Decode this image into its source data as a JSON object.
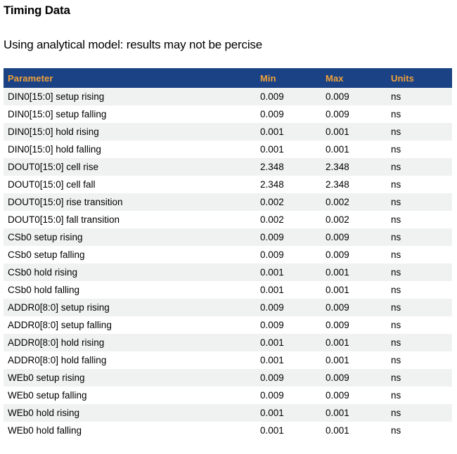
{
  "page": {
    "title": "Timing Data",
    "subtitle": "Using analytical model: results may not be percise"
  },
  "table": {
    "columns": [
      "Parameter",
      "Min",
      "Max",
      "Units"
    ],
    "rows": [
      {
        "parameter": "DIN0[15:0] setup rising",
        "min": "0.009",
        "max": "0.009",
        "units": "ns"
      },
      {
        "parameter": "DIN0[15:0] setup falling",
        "min": "0.009",
        "max": "0.009",
        "units": "ns"
      },
      {
        "parameter": "DIN0[15:0] hold rising",
        "min": "0.001",
        "max": "0.001",
        "units": "ns"
      },
      {
        "parameter": "DIN0[15:0] hold falling",
        "min": "0.001",
        "max": "0.001",
        "units": "ns"
      },
      {
        "parameter": "DOUT0[15:0] cell rise",
        "min": "2.348",
        "max": "2.348",
        "units": "ns"
      },
      {
        "parameter": "DOUT0[15:0] cell fall",
        "min": "2.348",
        "max": "2.348",
        "units": "ns"
      },
      {
        "parameter": "DOUT0[15:0] rise transition",
        "min": "0.002",
        "max": "0.002",
        "units": "ns"
      },
      {
        "parameter": "DOUT0[15:0] fall transition",
        "min": "0.002",
        "max": "0.002",
        "units": "ns"
      },
      {
        "parameter": "CSb0 setup rising",
        "min": "0.009",
        "max": "0.009",
        "units": "ns"
      },
      {
        "parameter": "CSb0 setup falling",
        "min": "0.009",
        "max": "0.009",
        "units": "ns"
      },
      {
        "parameter": "CSb0 hold rising",
        "min": "0.001",
        "max": "0.001",
        "units": "ns"
      },
      {
        "parameter": "CSb0 hold falling",
        "min": "0.001",
        "max": "0.001",
        "units": "ns"
      },
      {
        "parameter": "ADDR0[8:0] setup rising",
        "min": "0.009",
        "max": "0.009",
        "units": "ns"
      },
      {
        "parameter": "ADDR0[8:0] setup falling",
        "min": "0.009",
        "max": "0.009",
        "units": "ns"
      },
      {
        "parameter": "ADDR0[8:0] hold rising",
        "min": "0.001",
        "max": "0.001",
        "units": "ns"
      },
      {
        "parameter": "ADDR0[8:0] hold falling",
        "min": "0.001",
        "max": "0.001",
        "units": "ns"
      },
      {
        "parameter": "WEb0 setup rising",
        "min": "0.009",
        "max": "0.009",
        "units": "ns"
      },
      {
        "parameter": "WEb0 setup falling",
        "min": "0.009",
        "max": "0.009",
        "units": "ns"
      },
      {
        "parameter": "WEb0 hold rising",
        "min": "0.001",
        "max": "0.001",
        "units": "ns"
      },
      {
        "parameter": "WEb0 hold falling",
        "min": "0.001",
        "max": "0.001",
        "units": "ns"
      }
    ]
  },
  "colors": {
    "header_bg": "#1A4284",
    "header_text": "#F0A23C",
    "row_stripe": "#F0F1F1",
    "body_text": "#000000",
    "page_bg": "#FFFFFF"
  }
}
